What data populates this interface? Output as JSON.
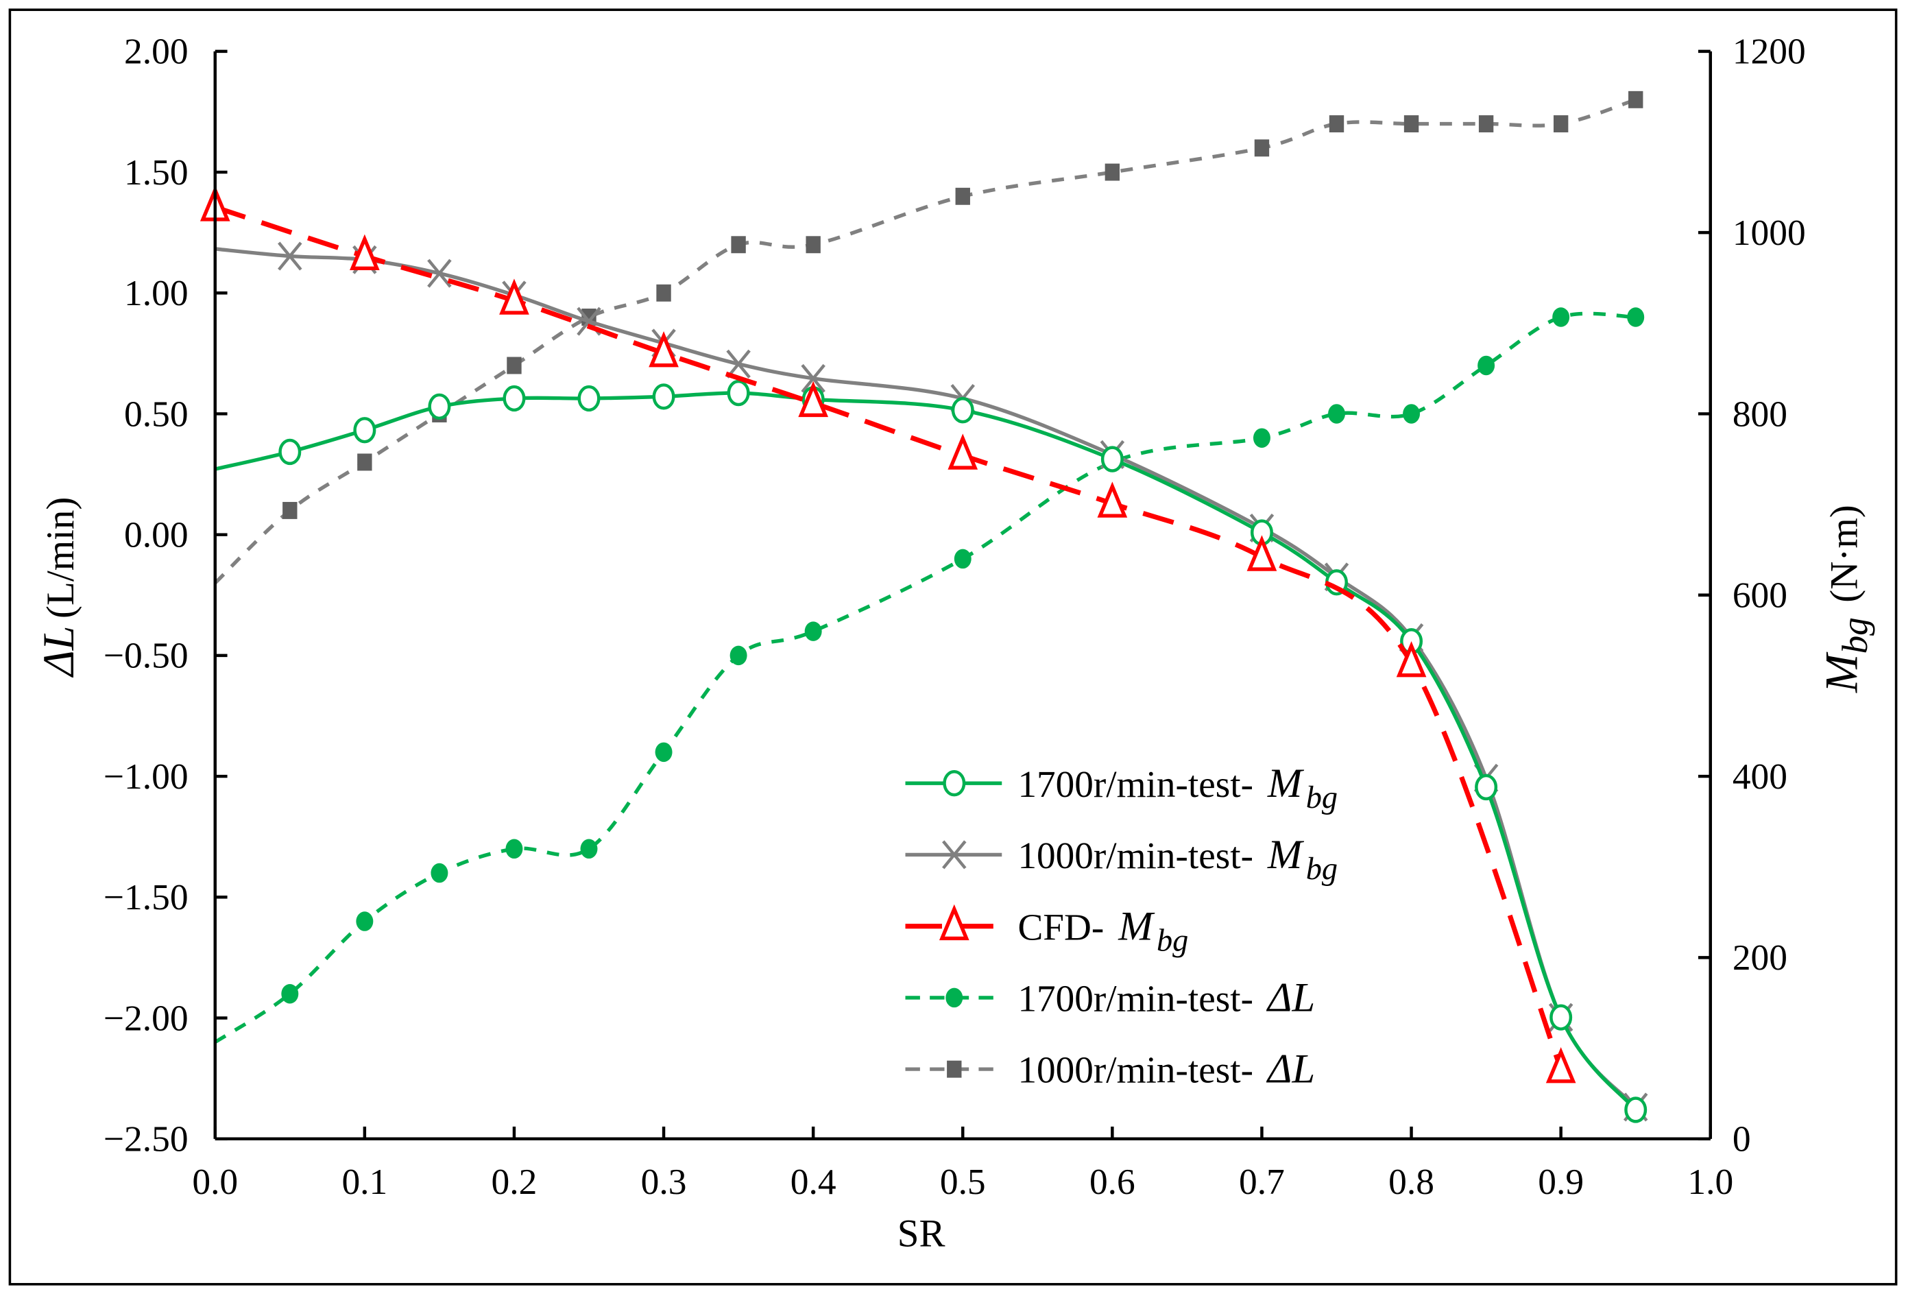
{
  "chart_data": {
    "type": "line",
    "xlabel": "SR",
    "ylabel_left": {
      "symbol": "ΔL",
      "unit": "(L/min)"
    },
    "ylabel_right": {
      "symbol": "M",
      "subscript": "bg",
      "unit": "(N·m)"
    },
    "xlim": [
      0,
      1.0
    ],
    "ylim_left": [
      -2.5,
      2.0
    ],
    "ylim_right": [
      0,
      1200
    ],
    "x_ticks": [
      "0.0",
      "0.1",
      "0.2",
      "0.3",
      "0.4",
      "0.5",
      "0.6",
      "0.7",
      "0.8",
      "0.9",
      "1.0"
    ],
    "y_left_ticks": [
      "2.00",
      "1.50",
      "1.00",
      "0.50",
      "0.00",
      "−0.50",
      "−1.00",
      "−1.50",
      "−2.00",
      "−2.50"
    ],
    "y_right_ticks": [
      "1200",
      "1000",
      "800",
      "600",
      "400",
      "200",
      "0"
    ],
    "grid": false,
    "legend_placement": "bottom-center",
    "series": [
      {
        "name": "1700r/min-test- M_bg",
        "label": "1700r/min-test- ",
        "sym": "M",
        "sub": "bg",
        "axis": "right",
        "color": "#00b050",
        "style": "solid",
        "marker": "circle",
        "x": [
          0,
          0.05,
          0.1,
          0.15,
          0.2,
          0.25,
          0.3,
          0.35,
          0.4,
          0.5,
          0.6,
          0.7,
          0.75,
          0.8,
          0.85,
          0.9,
          0.95
        ],
        "y": [
          739,
          758,
          782,
          808,
          817,
          817,
          819,
          823,
          816,
          804,
          750,
          669,
          614,
          549,
          388,
          134,
          32
        ]
      },
      {
        "name": "1000r/min-test- M_bg",
        "label": "1000r/min-test- ",
        "sym": "M",
        "sub": "bg",
        "axis": "right",
        "color": "#808080",
        "style": "solid",
        "marker": "x",
        "x": [
          0,
          0.05,
          0.1,
          0.15,
          0.2,
          0.25,
          0.3,
          0.35,
          0.4,
          0.5,
          0.6,
          0.7,
          0.75,
          0.8,
          0.85,
          0.9,
          0.95
        ],
        "y": [
          982,
          974,
          970,
          955,
          931,
          902,
          878,
          855,
          839,
          817,
          755,
          674,
          620,
          553,
          398,
          134,
          35
        ]
      },
      {
        "name": "CFD- M_bg",
        "label": "CFD- ",
        "sym": "M",
        "sub": "bg",
        "axis": "right",
        "color": "#ff0000",
        "style": "longdash",
        "marker": "triangle",
        "x": [
          0,
          0.1,
          0.2,
          0.3,
          0.4,
          0.5,
          0.6,
          0.7,
          0.8,
          0.9
        ],
        "y": [
          1028,
          974,
          925,
          867,
          812,
          754,
          701,
          642,
          525,
          77
        ]
      },
      {
        "name": "1700r/min-test- ΔL",
        "label": "1700r/min-test- ",
        "sym": "ΔL",
        "sub": "",
        "axis": "left",
        "color": "#00b050",
        "style": "dash",
        "marker": "dot",
        "x": [
          0,
          0.05,
          0.1,
          0.15,
          0.2,
          0.25,
          0.3,
          0.35,
          0.4,
          0.5,
          0.6,
          0.7,
          0.75,
          0.8,
          0.85,
          0.9,
          0.95
        ],
        "y": [
          -2.1,
          -1.9,
          -1.6,
          -1.4,
          -1.3,
          -1.3,
          -0.9,
          -0.5,
          -0.4,
          -0.1,
          0.3,
          0.4,
          0.5,
          0.5,
          0.7,
          0.9,
          0.9
        ]
      },
      {
        "name": "1000r/min-test- ΔL",
        "label": "1000r/min-test- ",
        "sym": "ΔL",
        "sub": "",
        "axis": "left",
        "color": "#808080",
        "style": "dash",
        "marker": "square",
        "x": [
          0,
          0.05,
          0.1,
          0.15,
          0.2,
          0.25,
          0.3,
          0.35,
          0.4,
          0.5,
          0.6,
          0.7,
          0.75,
          0.8,
          0.85,
          0.9,
          0.95
        ],
        "y": [
          -0.2,
          0.1,
          0.3,
          0.5,
          0.7,
          0.9,
          1.0,
          1.2,
          1.2,
          1.4,
          1.5,
          1.6,
          1.7,
          1.7,
          1.7,
          1.7,
          1.8
        ]
      }
    ]
  }
}
